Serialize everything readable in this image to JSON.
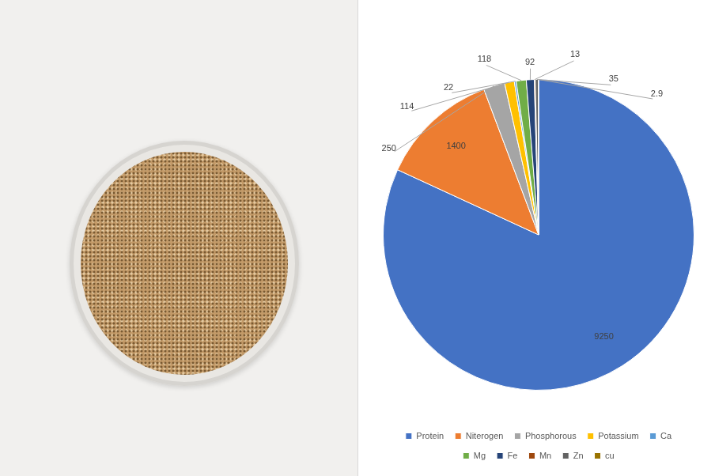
{
  "chart_data": {
    "type": "pie",
    "categories": [
      "Protein",
      "Niterogen",
      "Phosphorous",
      "Potassium",
      "Ca",
      "Mg",
      "Fe",
      "Mn",
      "Zn",
      "cu"
    ],
    "values": [
      9250,
      1400,
      250,
      114,
      22,
      118,
      92,
      13,
      35,
      2.9
    ],
    "colors": [
      "#4472c4",
      "#ed7d31",
      "#a5a5a5",
      "#ffc000",
      "#5b9bd5",
      "#70ad47",
      "#264478",
      "#9e480e",
      "#636363",
      "#997300"
    ],
    "data_labels": true,
    "legend": "bottom"
  }
}
